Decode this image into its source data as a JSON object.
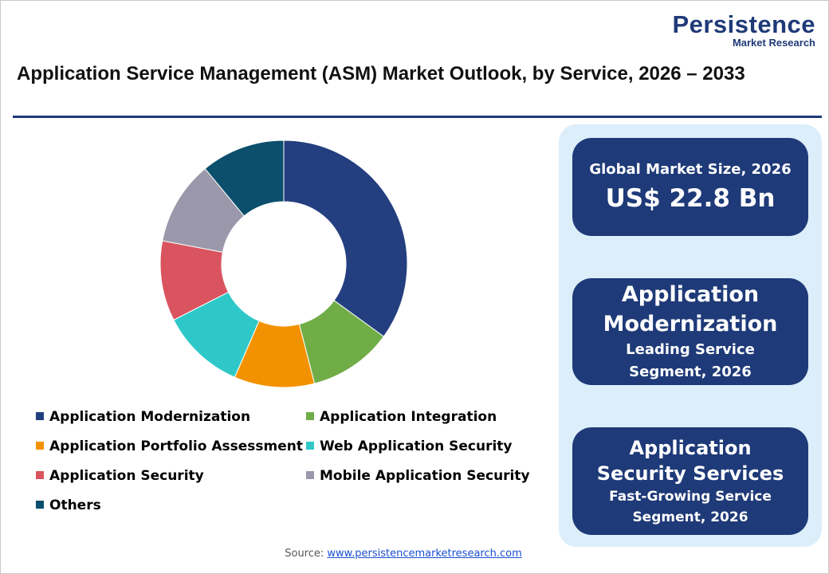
{
  "logo": {
    "name": "Persistence",
    "tagline": "Market Research"
  },
  "chart_data": {
    "type": "donut",
    "title": "Application Service Management (ASM) Market Outlook, by Service, 2026 – 2033",
    "categories": [
      "Application Modernization",
      "Application Integration",
      "Application Portfolio Assessment",
      "Web Application Security",
      "Application Security",
      "Mobile Application Security",
      "Others"
    ],
    "values": [
      35,
      11,
      10.5,
      11,
      10.5,
      11,
      11
    ],
    "colors": [
      "#243f7f",
      "#70ad47",
      "#f39200",
      "#2ec8c8",
      "#d9545f",
      "#9a98aa",
      "#0b4f6c"
    ]
  },
  "highlights": [
    {
      "label": "Global Market Size, 2026",
      "value": "US$ 22.8 Bn"
    },
    {
      "value": "Application Modernization",
      "label": "Leading Service Segment, 2026"
    },
    {
      "value": "Application Security Services",
      "label": "Fast-Growing Service Segment, 2026"
    }
  ],
  "source": {
    "label": "Source:",
    "url": "www.persistencemarketresearch.com"
  }
}
